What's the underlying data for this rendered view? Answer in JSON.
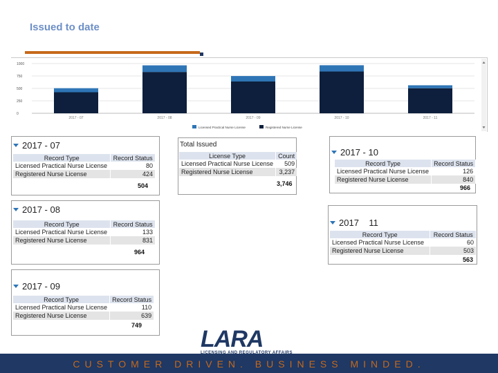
{
  "slide": {
    "title": "Issued to date"
  },
  "chart_data": {
    "type": "bar",
    "stacked": true,
    "categories": [
      "2017 - 07",
      "2017 - 08",
      "2017 - 09",
      "2017 - 10",
      "2017 - 11"
    ],
    "series": [
      {
        "name": "Licensed Practical Nurse License",
        "values": [
          80,
          133,
          110,
          126,
          60
        ],
        "color": "#2e75b6"
      },
      {
        "name": "Registered Nurse License",
        "values": [
          424,
          831,
          639,
          840,
          503
        ],
        "color": "#0d1f3c"
      }
    ],
    "yticks": [
      0,
      250,
      500,
      750,
      1000
    ],
    "ylim": [
      0,
      1000
    ],
    "legend_position": "bottom-center"
  },
  "panels": {
    "p07": {
      "header": "2017 - 07",
      "col1": "Record Type",
      "col2": "Record Status",
      "rows": [
        {
          "type": "Licensed Practical  Nurse License",
          "value": "80"
        },
        {
          "type": "Registered Nurse License",
          "value": "424"
        }
      ],
      "total": "504"
    },
    "p08": {
      "header": "2017 - 08",
      "col1": "Record Type",
      "col2": "Record Status",
      "rows": [
        {
          "type": "Licensed Practical Nurse License",
          "value": "133"
        },
        {
          "type": "Registered Nurse License",
          "value": "831"
        }
      ],
      "total": "964"
    },
    "p09": {
      "header": "2017 - 09",
      "col1": "Record Type",
      "col2": "Record Status",
      "rows": [
        {
          "type": "Licensed Practical Nurse License",
          "value": "110"
        },
        {
          "type": "Registered Nurse License",
          "value": "639"
        }
      ],
      "total": "749"
    },
    "ptotal": {
      "header": "Total Issued",
      "col1": "License Type",
      "col2": "Count",
      "rows": [
        {
          "type": "Licensed Practical Nurse License",
          "value": "509"
        },
        {
          "type": "Registered Nurse License",
          "value": "3,237"
        }
      ],
      "total": "3,746"
    },
    "p10": {
      "header": "2017 - 10",
      "col1": "Record Type",
      "col2": "Record Status",
      "rows": [
        {
          "type": "Licensed Practical Nurse License",
          "value": "126"
        },
        {
          "type": "Registered Nurse License",
          "value": "840"
        }
      ],
      "total": "966"
    },
    "p11": {
      "header": "2017    11",
      "col1": "Record Type",
      "col2": "Record Status",
      "rows": [
        {
          "type": "Licensed Practical Nurse License",
          "value": "60"
        },
        {
          "type": "Registered Nurse License",
          "value": "503"
        }
      ],
      "total": "563"
    }
  },
  "logo": {
    "word": "LARA",
    "subtitle": "LICENSING AND REGULATORY AFFAIRS"
  },
  "footer": {
    "tagline": "CUSTOMER DRIVEN. BUSINESS MINDED."
  },
  "colors": {
    "accent": "#c6691a",
    "navy": "#1f3864",
    "lpn": "#2e75b6",
    "rn": "#0d1f3c"
  }
}
